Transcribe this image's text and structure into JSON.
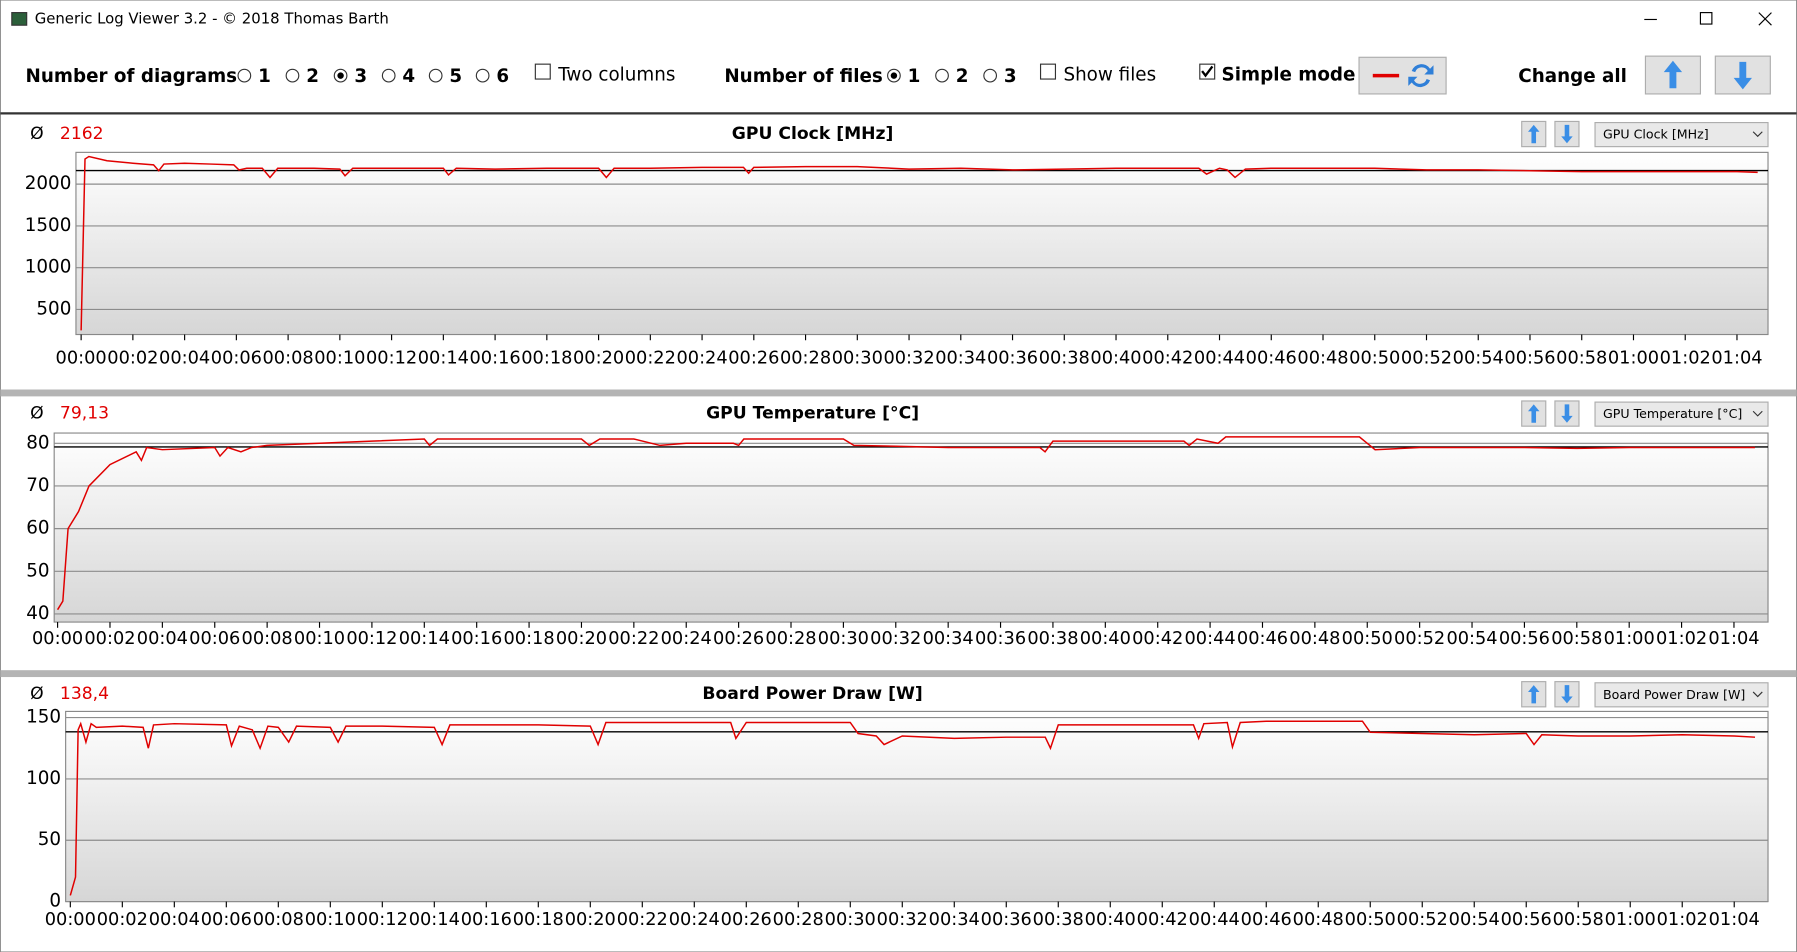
{
  "window": {
    "title": "Generic Log Viewer 3.2 - © 2018 Thomas Barth"
  },
  "toolbar": {
    "diagrams_label": "Number of diagrams",
    "diagram_options": [
      "1",
      "2",
      "3",
      "4",
      "5",
      "6"
    ],
    "diagrams_selected": 2,
    "two_columns": {
      "label": "Two columns",
      "checked": false
    },
    "files_label": "Number of files",
    "file_options": [
      "1",
      "2",
      "3"
    ],
    "files_selected": 0,
    "show_files": {
      "label": "Show files",
      "checked": false
    },
    "simple_mode": {
      "label": "Simple mode",
      "checked": true
    },
    "change_all": "Change all"
  },
  "chart_data": [
    {
      "type": "line",
      "title": "GPU Clock [MHz]",
      "selector": "GPU Clock [MHz]",
      "average_symbol": "Ø",
      "average": {
        "value": 2162,
        "label": "2162"
      },
      "color": "#e00000",
      "average_color": "#000000",
      "x": [
        0,
        0.15,
        0.3,
        1,
        2,
        2.8,
        3,
        3.2,
        4,
        5,
        5.9,
        6.1,
        6.4,
        7,
        7.3,
        7.6,
        8,
        9,
        10,
        10.2,
        10.5,
        12,
        13,
        14,
        14.2,
        14.5,
        16,
        18,
        20,
        20.3,
        20.6,
        22,
        24,
        25.6,
        25.8,
        26,
        28,
        30,
        32,
        34,
        36,
        38,
        40,
        42,
        43.2,
        43.5,
        44,
        44.3,
        44.6,
        45,
        46,
        48,
        50,
        52,
        54,
        56,
        58,
        60,
        62,
        64,
        64.8
      ],
      "values": [
        250,
        2300,
        2330,
        2280,
        2250,
        2230,
        2160,
        2240,
        2250,
        2240,
        2230,
        2170,
        2190,
        2190,
        2080,
        2190,
        2190,
        2190,
        2180,
        2100,
        2190,
        2190,
        2190,
        2190,
        2110,
        2190,
        2180,
        2190,
        2190,
        2080,
        2190,
        2190,
        2200,
        2200,
        2130,
        2200,
        2210,
        2210,
        2180,
        2190,
        2170,
        2180,
        2190,
        2190,
        2190,
        2120,
        2190,
        2170,
        2080,
        2180,
        2190,
        2190,
        2190,
        2170,
        2170,
        2160,
        2150,
        2150,
        2150,
        2150,
        2140
      ],
      "xlim": [
        -0.2,
        65.2
      ],
      "ylim": [
        200,
        2380
      ],
      "yticks": [
        500,
        1000,
        1500,
        2000
      ],
      "grid": true,
      "xticks": [
        {
          "value": 0,
          "label": "00:00"
        },
        {
          "value": 2,
          "label": "00:02"
        },
        {
          "value": 4,
          "label": "00:04"
        },
        {
          "value": 6,
          "label": "00:06"
        },
        {
          "value": 8,
          "label": "00:08"
        },
        {
          "value": 10,
          "label": "00:10"
        },
        {
          "value": 12,
          "label": "00:12"
        },
        {
          "value": 14,
          "label": "00:14"
        },
        {
          "value": 16,
          "label": "00:16"
        },
        {
          "value": 18,
          "label": "00:18"
        },
        {
          "value": 20,
          "label": "00:20"
        },
        {
          "value": 22,
          "label": "00:22"
        },
        {
          "value": 24,
          "label": "00:24"
        },
        {
          "value": 26,
          "label": "00:26"
        },
        {
          "value": 28,
          "label": "00:28"
        },
        {
          "value": 30,
          "label": "00:30"
        },
        {
          "value": 32,
          "label": "00:32"
        },
        {
          "value": 34,
          "label": "00:34"
        },
        {
          "value": 36,
          "label": "00:36"
        },
        {
          "value": 38,
          "label": "00:38"
        },
        {
          "value": 40,
          "label": "00:40"
        },
        {
          "value": 42,
          "label": "00:42"
        },
        {
          "value": 44,
          "label": "00:44"
        },
        {
          "value": 46,
          "label": "00:46"
        },
        {
          "value": 48,
          "label": "00:48"
        },
        {
          "value": 50,
          "label": "00:50"
        },
        {
          "value": 52,
          "label": "00:52"
        },
        {
          "value": 54,
          "label": "00:54"
        },
        {
          "value": 56,
          "label": "00:56"
        },
        {
          "value": 58,
          "label": "00:58"
        },
        {
          "value": 60,
          "label": "01:00"
        },
        {
          "value": 62,
          "label": "01:02"
        },
        {
          "value": 64,
          "label": "01:04"
        }
      ]
    },
    {
      "type": "line",
      "title": "GPU Temperature [°C]",
      "selector": "GPU Temperature [°C]",
      "average_symbol": "Ø",
      "average": {
        "value": 79.13,
        "label": "79,13"
      },
      "color": "#e00000",
      "average_color": "#000000",
      "x": [
        0,
        0.2,
        0.4,
        0.8,
        1.2,
        2,
        3,
        3.2,
        3.4,
        4,
        6,
        6.2,
        6.5,
        7,
        7.4,
        8,
        10,
        12,
        14,
        14.2,
        14.5,
        16,
        18,
        20,
        20.3,
        20.7,
        22,
        23,
        24,
        25.8,
        26,
        26.2,
        28,
        30,
        30.4,
        32,
        34,
        36,
        37.5,
        37.7,
        38,
        40,
        42,
        43,
        43.2,
        43.5,
        44.3,
        44.6,
        46,
        48,
        49.7,
        50,
        50.3,
        52,
        54,
        56,
        58,
        60,
        62,
        64,
        64.8
      ],
      "values": [
        41,
        43,
        60,
        64,
        70,
        75,
        78,
        76,
        79,
        78.5,
        79,
        77,
        79,
        78,
        79,
        79.5,
        80,
        80.5,
        81,
        79.5,
        81,
        81,
        81,
        81,
        79.5,
        81,
        81,
        79.5,
        80,
        80,
        79.5,
        81,
        81,
        81,
        79.5,
        79.3,
        79,
        79,
        79,
        78,
        80.5,
        80.5,
        80.5,
        80.5,
        79.5,
        81,
        80,
        81.5,
        81.5,
        81.5,
        81.5,
        80,
        78.5,
        79,
        79,
        79,
        78.8,
        79,
        79,
        79,
        79
      ],
      "xlim": [
        -0.13,
        65.3
      ],
      "ylim": [
        38.1,
        82.4
      ],
      "yticks": [
        40,
        50,
        60,
        70,
        80
      ],
      "grid": true,
      "xticks": [
        {
          "value": 0,
          "label": "00:00"
        },
        {
          "value": 2,
          "label": "00:02"
        },
        {
          "value": 4,
          "label": "00:04"
        },
        {
          "value": 6,
          "label": "00:06"
        },
        {
          "value": 8,
          "label": "00:08"
        },
        {
          "value": 10,
          "label": "00:10"
        },
        {
          "value": 12,
          "label": "00:12"
        },
        {
          "value": 14,
          "label": "00:14"
        },
        {
          "value": 16,
          "label": "00:16"
        },
        {
          "value": 18,
          "label": "00:18"
        },
        {
          "value": 20,
          "label": "00:20"
        },
        {
          "value": 22,
          "label": "00:22"
        },
        {
          "value": 24,
          "label": "00:24"
        },
        {
          "value": 26,
          "label": "00:26"
        },
        {
          "value": 28,
          "label": "00:28"
        },
        {
          "value": 30,
          "label": "00:30"
        },
        {
          "value": 32,
          "label": "00:32"
        },
        {
          "value": 34,
          "label": "00:34"
        },
        {
          "value": 36,
          "label": "00:36"
        },
        {
          "value": 38,
          "label": "00:38"
        },
        {
          "value": 40,
          "label": "00:40"
        },
        {
          "value": 42,
          "label": "00:42"
        },
        {
          "value": 44,
          "label": "00:44"
        },
        {
          "value": 46,
          "label": "00:46"
        },
        {
          "value": 48,
          "label": "00:48"
        },
        {
          "value": 50,
          "label": "00:50"
        },
        {
          "value": 52,
          "label": "00:52"
        },
        {
          "value": 54,
          "label": "00:54"
        },
        {
          "value": 56,
          "label": "00:56"
        },
        {
          "value": 58,
          "label": "00:58"
        },
        {
          "value": 60,
          "label": "01:00"
        },
        {
          "value": 62,
          "label": "01:02"
        },
        {
          "value": 64,
          "label": "01:04"
        }
      ]
    },
    {
      "type": "line",
      "title": "Board Power Draw [W]",
      "selector": "Board Power Draw [W]",
      "average_symbol": "Ø",
      "average": {
        "value": 138.4,
        "label": "138,4"
      },
      "color": "#e00000",
      "average_color": "#000000",
      "x": [
        0,
        0.2,
        0.3,
        0.4,
        0.6,
        0.8,
        1,
        2,
        2.8,
        3,
        3.2,
        4,
        6,
        6.2,
        6.5,
        7,
        7.3,
        7.6,
        8,
        8.4,
        8.7,
        10,
        10.3,
        10.6,
        12,
        14,
        14.3,
        14.6,
        16,
        18,
        20,
        20.3,
        20.6,
        22,
        24,
        25.4,
        25.6,
        26,
        28,
        30,
        30.3,
        31,
        31.3,
        32,
        34,
        36,
        37.5,
        37.7,
        38,
        40,
        42,
        43.2,
        43.4,
        43.6,
        44.5,
        44.7,
        45,
        46,
        48,
        49.7,
        50,
        52,
        54,
        56,
        56.3,
        56.6,
        58,
        60,
        62,
        64,
        64.8
      ],
      "values": [
        5,
        20,
        140,
        145,
        130,
        145,
        142,
        143,
        142,
        125,
        144,
        145,
        144,
        127,
        143,
        140,
        125,
        143,
        142,
        130,
        143,
        142,
        130,
        143,
        143,
        142,
        128,
        144,
        144,
        144,
        143,
        128,
        146,
        146,
        146,
        146,
        133,
        146,
        146,
        146,
        137,
        135,
        128,
        135,
        133,
        134,
        134,
        125,
        144,
        144,
        144,
        144,
        133,
        145,
        146,
        126,
        146,
        147,
        147,
        147,
        138,
        137,
        136,
        137,
        128,
        136,
        135,
        135,
        136,
        135,
        134
      ],
      "xlim": [
        -0.18,
        65.3
      ],
      "ylim": [
        0,
        155
      ],
      "yticks": [
        0,
        50,
        100,
        150
      ],
      "grid": true,
      "xticks": [
        {
          "value": 0,
          "label": "00:00"
        },
        {
          "value": 2,
          "label": "00:02"
        },
        {
          "value": 4,
          "label": "00:04"
        },
        {
          "value": 6,
          "label": "00:06"
        },
        {
          "value": 8,
          "label": "00:08"
        },
        {
          "value": 10,
          "label": "00:10"
        },
        {
          "value": 12,
          "label": "00:12"
        },
        {
          "value": 14,
          "label": "00:14"
        },
        {
          "value": 16,
          "label": "00:16"
        },
        {
          "value": 18,
          "label": "00:18"
        },
        {
          "value": 20,
          "label": "00:20"
        },
        {
          "value": 22,
          "label": "00:22"
        },
        {
          "value": 24,
          "label": "00:24"
        },
        {
          "value": 26,
          "label": "00:26"
        },
        {
          "value": 28,
          "label": "00:28"
        },
        {
          "value": 30,
          "label": "00:30"
        },
        {
          "value": 32,
          "label": "00:32"
        },
        {
          "value": 34,
          "label": "00:34"
        },
        {
          "value": 36,
          "label": "00:36"
        },
        {
          "value": 38,
          "label": "00:38"
        },
        {
          "value": 40,
          "label": "00:40"
        },
        {
          "value": 42,
          "label": "00:42"
        },
        {
          "value": 44,
          "label": "00:44"
        },
        {
          "value": 46,
          "label": "00:46"
        },
        {
          "value": 48,
          "label": "00:48"
        },
        {
          "value": 50,
          "label": "00:50"
        },
        {
          "value": 52,
          "label": "00:52"
        },
        {
          "value": 54,
          "label": "00:54"
        },
        {
          "value": 56,
          "label": "00:56"
        },
        {
          "value": 58,
          "label": "00:58"
        },
        {
          "value": 60,
          "label": "01:00"
        },
        {
          "value": 62,
          "label": "01:02"
        },
        {
          "value": 64,
          "label": "01:04"
        }
      ]
    }
  ]
}
